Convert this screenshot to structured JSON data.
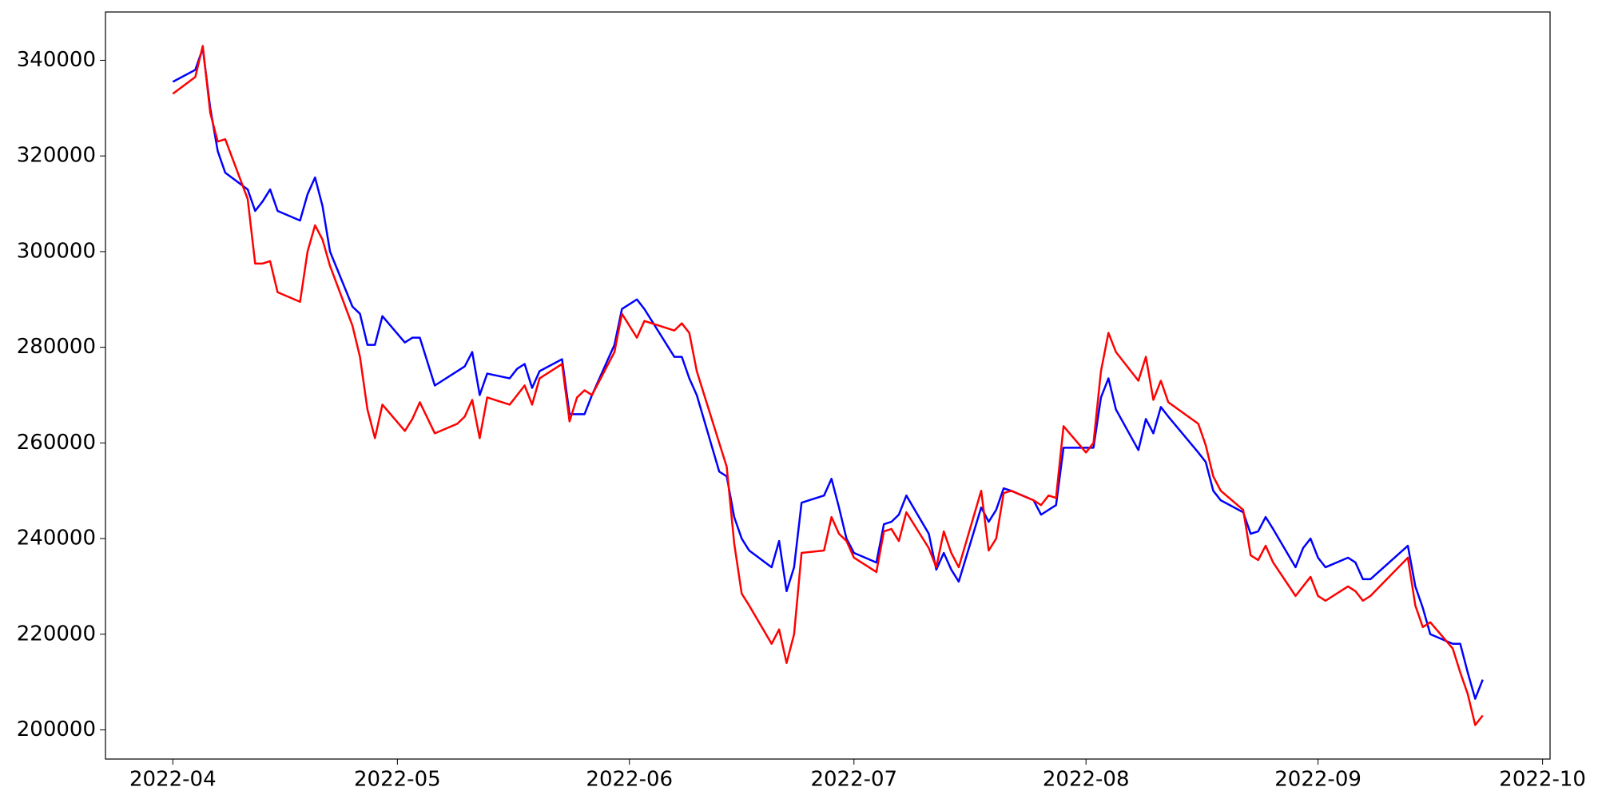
{
  "chart_data": {
    "type": "line",
    "x": [
      "2022-04-01",
      "2022-04-04",
      "2022-04-05",
      "2022-04-06",
      "2022-04-07",
      "2022-04-08",
      "2022-04-11",
      "2022-04-12",
      "2022-04-13",
      "2022-04-14",
      "2022-04-15",
      "2022-04-18",
      "2022-04-19",
      "2022-04-20",
      "2022-04-21",
      "2022-04-22",
      "2022-04-25",
      "2022-04-26",
      "2022-04-27",
      "2022-04-28",
      "2022-04-29",
      "2022-05-02",
      "2022-05-03",
      "2022-05-04",
      "2022-05-06",
      "2022-05-09",
      "2022-05-10",
      "2022-05-11",
      "2022-05-12",
      "2022-05-13",
      "2022-05-16",
      "2022-05-17",
      "2022-05-18",
      "2022-05-19",
      "2022-05-20",
      "2022-05-23",
      "2022-05-24",
      "2022-05-25",
      "2022-05-26",
      "2022-05-27",
      "2022-05-30",
      "2022-05-31",
      "2022-06-02",
      "2022-06-03",
      "2022-06-07",
      "2022-06-08",
      "2022-06-09",
      "2022-06-10",
      "2022-06-13",
      "2022-06-14",
      "2022-06-15",
      "2022-06-16",
      "2022-06-17",
      "2022-06-20",
      "2022-06-21",
      "2022-06-22",
      "2022-06-23",
      "2022-06-24",
      "2022-06-27",
      "2022-06-28",
      "2022-06-29",
      "2022-06-30",
      "2022-07-01",
      "2022-07-04",
      "2022-07-05",
      "2022-07-06",
      "2022-07-07",
      "2022-07-08",
      "2022-07-11",
      "2022-07-12",
      "2022-07-13",
      "2022-07-14",
      "2022-07-15",
      "2022-07-18",
      "2022-07-19",
      "2022-07-20",
      "2022-07-21",
      "2022-07-22",
      "2022-07-25",
      "2022-07-26",
      "2022-07-27",
      "2022-07-28",
      "2022-07-29",
      "2022-08-01",
      "2022-08-02",
      "2022-08-03",
      "2022-08-04",
      "2022-08-05",
      "2022-08-08",
      "2022-08-09",
      "2022-08-10",
      "2022-08-11",
      "2022-08-12",
      "2022-08-16",
      "2022-08-17",
      "2022-08-18",
      "2022-08-19",
      "2022-08-22",
      "2022-08-23",
      "2022-08-24",
      "2022-08-25",
      "2022-08-26",
      "2022-08-29",
      "2022-08-30",
      "2022-08-31",
      "2022-09-01",
      "2022-09-02",
      "2022-09-05",
      "2022-09-06",
      "2022-09-07",
      "2022-09-08",
      "2022-09-13",
      "2022-09-14",
      "2022-09-15",
      "2022-09-16",
      "2022-09-19",
      "2022-09-20",
      "2022-09-21",
      "2022-09-22",
      "2022-09-23"
    ],
    "series": [
      {
        "color": "#0000ff",
        "values": [
          335500,
          338000,
          342500,
          330000,
          321000,
          316500,
          313000,
          308500,
          310500,
          313000,
          308500,
          306500,
          312000,
          315500,
          309500,
          300000,
          288500,
          287000,
          280500,
          280500,
          286500,
          281000,
          282000,
          282000,
          272000,
          275000,
          276000,
          279000,
          270000,
          274500,
          273500,
          275500,
          276500,
          271500,
          275000,
          277500,
          266000,
          266000,
          266000,
          270000,
          280500,
          288000,
          290000,
          288000,
          278000,
          278000,
          273500,
          270000,
          254000,
          253000,
          244500,
          240000,
          237500,
          234000,
          239500,
          229000,
          234000,
          247500,
          249000,
          252500,
          246500,
          240000,
          237000,
          235000,
          243000,
          243500,
          245000,
          249000,
          241000,
          233500,
          237000,
          233500,
          231000,
          246500,
          243500,
          246000,
          250500,
          250000,
          248000,
          245000,
          246000,
          247000,
          259000,
          259000,
          259000,
          269500,
          273500,
          267000,
          258500,
          265000,
          262000,
          267500,
          265500,
          258000,
          256000,
          250000,
          248000,
          245500,
          241000,
          241500,
          244500,
          242000,
          234000,
          238000,
          240000,
          236000,
          234000,
          236000,
          235000,
          231500,
          231500,
          238500,
          230000,
          225500,
          220000,
          218000,
          218000,
          212000,
          206500,
          210500
        ]
      },
      {
        "color": "#ff0000",
        "values": [
          333000,
          336500,
          343000,
          329000,
          323000,
          323500,
          311000,
          297500,
          297500,
          298000,
          291500,
          289500,
          300000,
          305500,
          302500,
          297000,
          284500,
          278000,
          267000,
          261000,
          268000,
          262500,
          265000,
          268500,
          262000,
          264000,
          265500,
          269000,
          261000,
          269500,
          268000,
          270000,
          272000,
          268000,
          273500,
          276500,
          264500,
          269500,
          271000,
          270000,
          279000,
          287000,
          282000,
          285500,
          283500,
          285000,
          283000,
          275000,
          260000,
          255000,
          239000,
          228500,
          226000,
          218000,
          221000,
          214000,
          220000,
          237000,
          237500,
          244500,
          241000,
          239500,
          236000,
          233000,
          241500,
          242000,
          239500,
          245500,
          238000,
          234000,
          241500,
          237000,
          234000,
          250000,
          237500,
          240000,
          249500,
          250000,
          248000,
          247000,
          249000,
          248500,
          263500,
          258000,
          260000,
          275000,
          283000,
          279000,
          273000,
          278000,
          269000,
          273000,
          268500,
          264000,
          259500,
          253000,
          250000,
          246000,
          236500,
          235500,
          238500,
          235000,
          228000,
          230000,
          232000,
          228000,
          227000,
          230000,
          229000,
          227000,
          228000,
          236000,
          226000,
          221500,
          222500,
          217000,
          212000,
          207500,
          201000,
          203000
        ]
      }
    ],
    "xlim": [
      "2022-03-23",
      "2022-10-02"
    ],
    "xticks": [
      {
        "value": "2022-04-01",
        "label": "2022-04"
      },
      {
        "value": "2022-05-01",
        "label": "2022-05"
      },
      {
        "value": "2022-06-01",
        "label": "2022-06"
      },
      {
        "value": "2022-07-01",
        "label": "2022-07"
      },
      {
        "value": "2022-08-01",
        "label": "2022-08"
      },
      {
        "value": "2022-09-01",
        "label": "2022-09"
      },
      {
        "value": "2022-10-01",
        "label": "2022-10"
      }
    ],
    "ylim": [
      193900,
      350100
    ],
    "yticks": [
      200000,
      220000,
      240000,
      260000,
      280000,
      300000,
      320000,
      340000
    ],
    "grid": false
  }
}
